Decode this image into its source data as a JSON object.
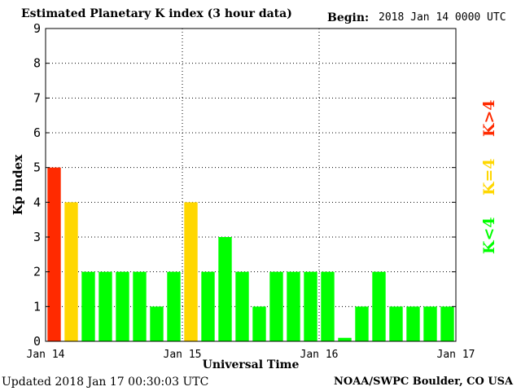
{
  "header": {
    "title": "Estimated Planetary K index (3 hour data)",
    "begin_label": "Begin:",
    "begin_value": "2018 Jan 14 0000 UTC"
  },
  "footer": {
    "updated": "Updated 2018 Jan 17 00:30:03 UTC",
    "source": "NOAA/SWPC Boulder, CO USA"
  },
  "legend": {
    "high": "K>4",
    "equal": "K=4",
    "low": "K<4"
  },
  "colors": {
    "low": "#00ff00",
    "equal": "#ffd700",
    "high": "#ff2a00",
    "grid": "#000000"
  },
  "chart_data": {
    "type": "bar",
    "title": "Estimated Planetary K index (3 hour data)",
    "xlabel": "Universal Time",
    "ylabel": "Kp index",
    "ylim": [
      0,
      9
    ],
    "yticks": [
      "0",
      "1",
      "2",
      "3",
      "4",
      "5",
      "6",
      "7",
      "8",
      "9"
    ],
    "xticks": [
      "Jan 14",
      "Jan 15",
      "Jan 16",
      "Jan 17"
    ],
    "grid": true,
    "values": [
      5,
      4,
      2,
      2,
      2,
      2,
      1,
      2,
      4,
      2,
      3,
      2,
      1,
      2,
      2,
      2,
      2,
      0.1,
      1,
      2,
      1,
      1,
      1,
      1
    ]
  }
}
